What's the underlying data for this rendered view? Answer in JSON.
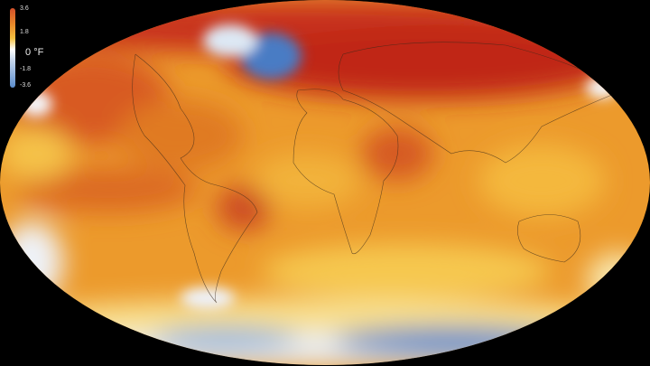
{
  "legend": {
    "unit": "°F",
    "ticks": [
      "3.6",
      "1.8",
      "0",
      "-1.8",
      "-3.6"
    ],
    "colors": {
      "max": "#d4502a",
      "mid_high": "#f5c040",
      "zero": "#ffffff",
      "min": "#5a8ccc"
    }
  },
  "map": {
    "projection": "Robinson",
    "colors": {
      "hot": "#c0281a",
      "warm": "#e8801e",
      "mild": "#f5c040",
      "neutral": "#fbf3d8",
      "cold": "#4a7cc4",
      "ocean_bg": "#000000"
    }
  }
}
